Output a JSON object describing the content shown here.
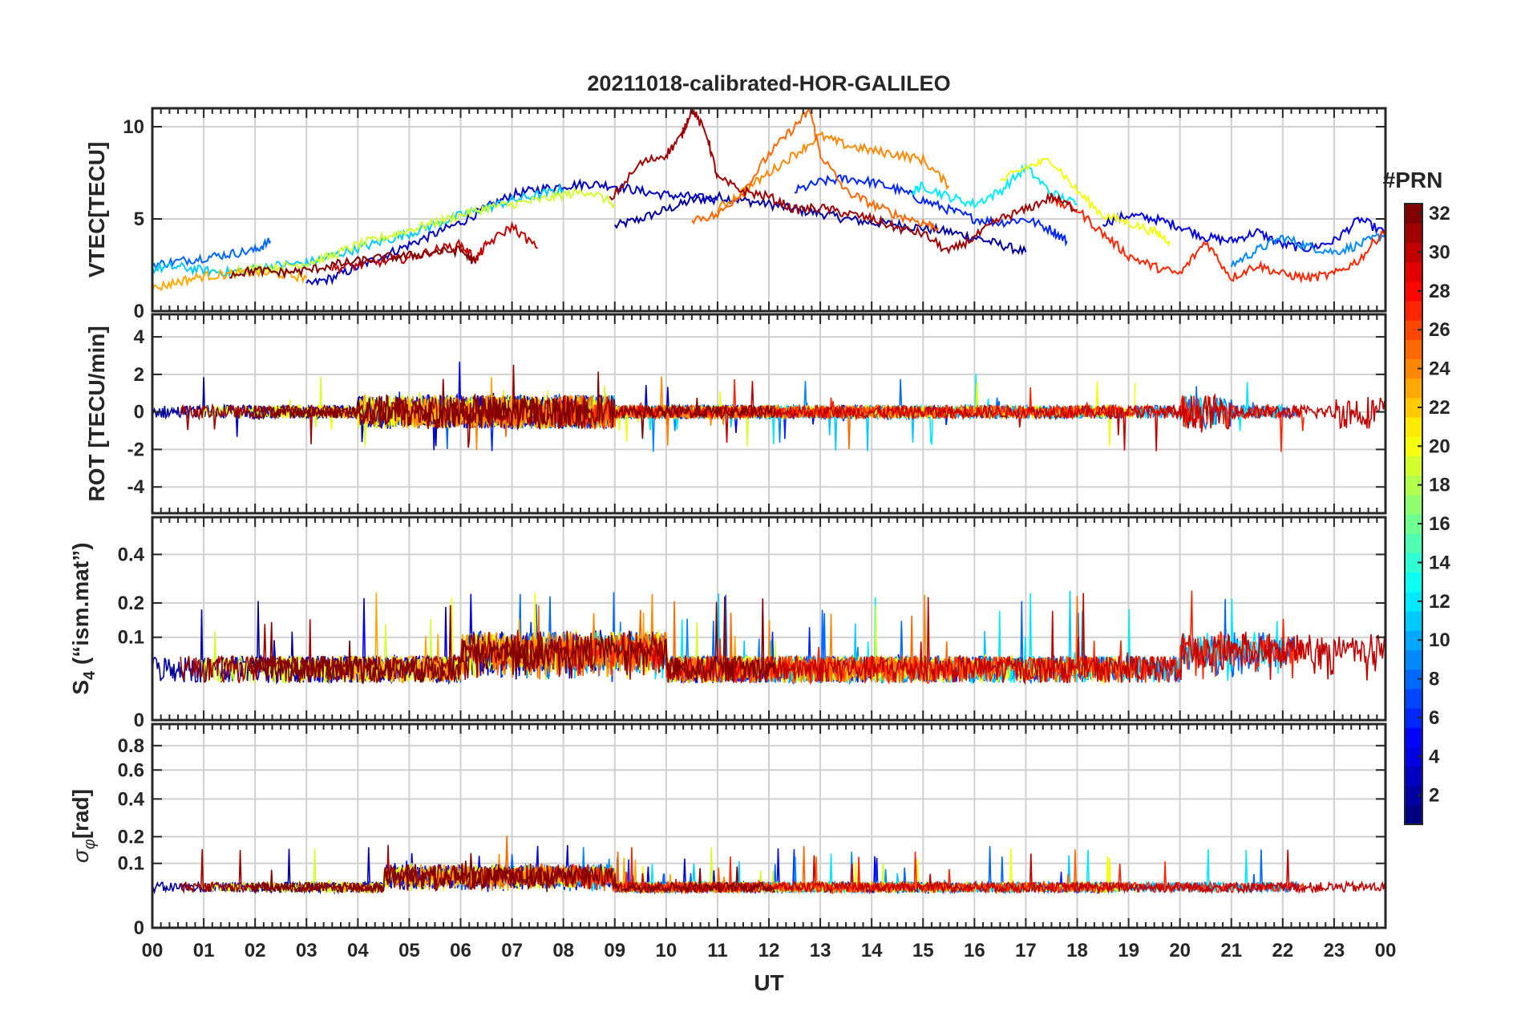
{
  "chart_data": {
    "type": "line",
    "title": "20211018-calibrated-HOR-GALILEO",
    "xlabel": "UT",
    "x_tick_labels": [
      "00",
      "01",
      "02",
      "03",
      "04",
      "05",
      "06",
      "07",
      "08",
      "09",
      "10",
      "11",
      "12",
      "13",
      "14",
      "15",
      "16",
      "17",
      "18",
      "19",
      "20",
      "21",
      "22",
      "23",
      "00"
    ],
    "xlim": [
      0,
      24
    ],
    "colorbar": {
      "label": "#PRN",
      "range": [
        1,
        32
      ],
      "tick_labels": [
        "2",
        "4",
        "6",
        "8",
        "10",
        "12",
        "14",
        "16",
        "18",
        "20",
        "22",
        "24",
        "26",
        "28",
        "30",
        "32"
      ],
      "colormap": "jet"
    },
    "legend_location": "none",
    "panels": [
      {
        "name": "vtec",
        "ylabel": "VTEC[TECU]",
        "ylim": [
          0,
          11
        ],
        "yticks": [
          0,
          5,
          10
        ],
        "ytick_labels": [
          "0",
          "5",
          "10"
        ],
        "series": [
          {
            "prn": 2,
            "x": [
              9.0,
              9.5,
              10.0,
              10.5,
              11.0,
              11.5,
              12.0,
              12.5,
              13.0,
              13.5,
              14.0,
              14.5,
              15.0,
              15.5,
              16.0,
              16.5,
              17.0
            ],
            "y": [
              4.6,
              5.0,
              5.5,
              6.0,
              6.2,
              6.0,
              5.8,
              5.5,
              5.3,
              5.0,
              4.8,
              4.7,
              4.5,
              4.3,
              4.0,
              3.6,
              3.2
            ]
          },
          {
            "prn": 3,
            "x": [
              3.0,
              3.5,
              4.0,
              4.5,
              5.0,
              5.5,
              6.0,
              6.5,
              7.0,
              7.5,
              8.0,
              8.5,
              9.0,
              9.5,
              10.0,
              10.5,
              11.0
            ],
            "y": [
              1.4,
              1.8,
              2.4,
              3.0,
              3.6,
              4.2,
              4.8,
              5.6,
              6.3,
              6.6,
              6.8,
              6.9,
              6.8,
              6.5,
              6.3,
              6.2,
              6.0
            ]
          },
          {
            "prn": 4,
            "x": [
              18.5,
              19.0,
              19.5,
              20.0,
              20.5,
              21.0,
              21.5,
              22.0,
              22.5,
              23.0,
              23.5,
              24.0
            ],
            "y": [
              4.8,
              5.2,
              5.0,
              4.6,
              4.0,
              3.8,
              4.3,
              3.6,
              3.4,
              3.8,
              5.0,
              4.2
            ]
          },
          {
            "prn": 6,
            "x": [
              12.5,
              13.0,
              13.5,
              14.0,
              14.5,
              15.0,
              15.5,
              16.0,
              16.5,
              17.0,
              17.5,
              17.8
            ],
            "y": [
              6.5,
              7.0,
              7.2,
              7.0,
              6.6,
              6.0,
              5.5,
              5.0,
              4.8,
              5.0,
              4.4,
              3.8
            ]
          },
          {
            "prn": 8,
            "x": [
              0.0,
              0.5,
              1.0,
              1.5,
              2.0,
              2.3
            ],
            "y": [
              2.5,
              2.7,
              2.9,
              3.1,
              3.3,
              3.8
            ]
          },
          {
            "prn": 9,
            "x": [
              21.0,
              21.5,
              22.0,
              22.5,
              23.0,
              23.5,
              24.0
            ],
            "y": [
              2.5,
              3.3,
              4.0,
              3.5,
              3.2,
              3.6,
              4.2
            ]
          },
          {
            "prn": 11,
            "x": [
              0.0,
              0.5,
              1.0,
              1.5,
              2.0,
              2.5,
              3.0,
              3.5,
              4.0,
              4.5,
              5.0,
              5.5,
              6.0,
              6.5,
              7.0,
              7.5,
              8.0
            ],
            "y": [
              2.3,
              2.4,
              2.2,
              2.1,
              2.3,
              2.5,
              2.6,
              3.0,
              3.4,
              3.8,
              4.2,
              4.7,
              5.2,
              5.6,
              6.0,
              6.3,
              6.6
            ]
          },
          {
            "prn": 12,
            "x": [
              14.8,
              15.0,
              15.5,
              16.0,
              16.5,
              17.0,
              17.5,
              18.0
            ],
            "y": [
              6.5,
              6.8,
              6.2,
              5.8,
              6.5,
              7.8,
              6.4,
              5.8
            ]
          },
          {
            "prn": 19,
            "x": [
              1.5,
              2.0,
              2.5,
              3.0,
              3.5,
              4.0,
              4.5,
              5.0,
              5.5,
              6.0,
              6.5,
              7.0,
              7.5,
              8.0,
              8.5,
              9.0
            ],
            "y": [
              2.2,
              2.3,
              2.4,
              2.6,
              3.0,
              3.6,
              4.0,
              4.4,
              4.8,
              5.2,
              5.6,
              5.8,
              6.0,
              6.3,
              6.5,
              5.8
            ]
          },
          {
            "prn": 20,
            "x": [
              16.5,
              17.0,
              17.5,
              18.0,
              18.5,
              19.0,
              19.5,
              19.8
            ],
            "y": [
              7.0,
              7.8,
              8.2,
              6.5,
              5.2,
              4.8,
              4.3,
              3.8
            ]
          },
          {
            "prn": 23,
            "x": [
              0.0,
              0.5,
              1.0,
              1.5,
              2.0,
              2.5,
              3.0
            ],
            "y": [
              1.2,
              1.6,
              1.9,
              2.0,
              2.1,
              2.0,
              1.8
            ]
          },
          {
            "prn": 24,
            "x": [
              11.0,
              11.5,
              12.0,
              12.5,
              13.0,
              13.5,
              14.0,
              14.5,
              15.0,
              15.5
            ],
            "y": [
              5.5,
              6.5,
              7.5,
              8.5,
              9.5,
              9.0,
              8.7,
              8.5,
              8.2,
              6.8
            ]
          },
          {
            "prn": 25,
            "x": [
              10.5,
              11.0,
              11.5,
              12.0,
              12.5,
              12.8,
              13.0,
              13.5,
              14.0,
              14.5,
              15.0,
              15.3
            ],
            "y": [
              5.0,
              5.2,
              6.5,
              8.5,
              10.0,
              10.9,
              8.5,
              6.5,
              5.8,
              5.2,
              4.8,
              4.5
            ]
          },
          {
            "prn": 27,
            "x": [
              17.5,
              18.0,
              18.5,
              19.0,
              19.5,
              20.0,
              20.5,
              21.0,
              21.5,
              22.0,
              22.5,
              23.0,
              23.5,
              24.0
            ],
            "y": [
              6.0,
              5.5,
              4.2,
              3.0,
              2.4,
              2.0,
              3.8,
              1.8,
              2.5,
              2.0,
              1.8,
              2.0,
              2.8,
              4.5
            ]
          },
          {
            "prn": 30,
            "x": [
              3.5,
              4.0,
              4.5,
              5.0,
              5.5,
              6.0,
              6.3,
              6.5,
              7.0,
              7.5
            ],
            "y": [
              2.3,
              2.5,
              2.7,
              2.9,
              3.3,
              3.6,
              2.8,
              3.6,
              4.6,
              3.4
            ]
          },
          {
            "prn": 31,
            "x": [
              8.9,
              9.5,
              10.0,
              10.3,
              10.5,
              10.8,
              11.0,
              11.5,
              12.0,
              12.5,
              13.0,
              13.5,
              14.0,
              14.5,
              15.0,
              15.5,
              16.0,
              16.5,
              17.0,
              17.5,
              18.0
            ],
            "y": [
              6.0,
              8.0,
              8.5,
              9.5,
              11.0,
              9.5,
              7.2,
              6.5,
              6.2,
              5.5,
              5.6,
              5.3,
              5.0,
              4.5,
              4.2,
              3.2,
              4.0,
              5.0,
              5.5,
              6.2,
              5.5
            ]
          },
          {
            "prn": 32,
            "x": [
              1.5,
              2.0,
              2.5,
              3.0,
              3.5,
              4.0,
              4.5,
              5.0,
              5.5,
              6.0,
              6.3
            ],
            "y": [
              2.0,
              2.2,
              2.1,
              2.2,
              2.5,
              2.7,
              2.9,
              3.0,
              3.2,
              3.3,
              2.6
            ]
          }
        ]
      },
      {
        "name": "rot",
        "ylabel": "ROT [TECU/min]",
        "ylim": [
          -5.4,
          5.2
        ],
        "yticks": [
          -4,
          -2,
          0,
          2,
          4
        ],
        "ytick_labels": [
          "-4",
          "-2",
          "0",
          "2",
          "4"
        ]
      },
      {
        "name": "s4",
        "ylabel": "S4 (\"ism.mat\")",
        "ylim": [
          0,
          0.6
        ],
        "yscale": "sqrt",
        "yticks": [
          0,
          0.1,
          0.2,
          0.4
        ],
        "ytick_labels": [
          "0",
          "0.1",
          "0.2",
          "0.4"
        ]
      },
      {
        "name": "sigma_phi",
        "ylabel": "σφ[rad]",
        "ylim": [
          0,
          1.0
        ],
        "yscale": "sqrt",
        "yticks": [
          0,
          0.1,
          0.2,
          0.4,
          0.6,
          0.8
        ],
        "ytick_labels": [
          "0",
          "0.1",
          "0.2",
          "0.4",
          "0.6",
          "0.8"
        ]
      }
    ]
  }
}
